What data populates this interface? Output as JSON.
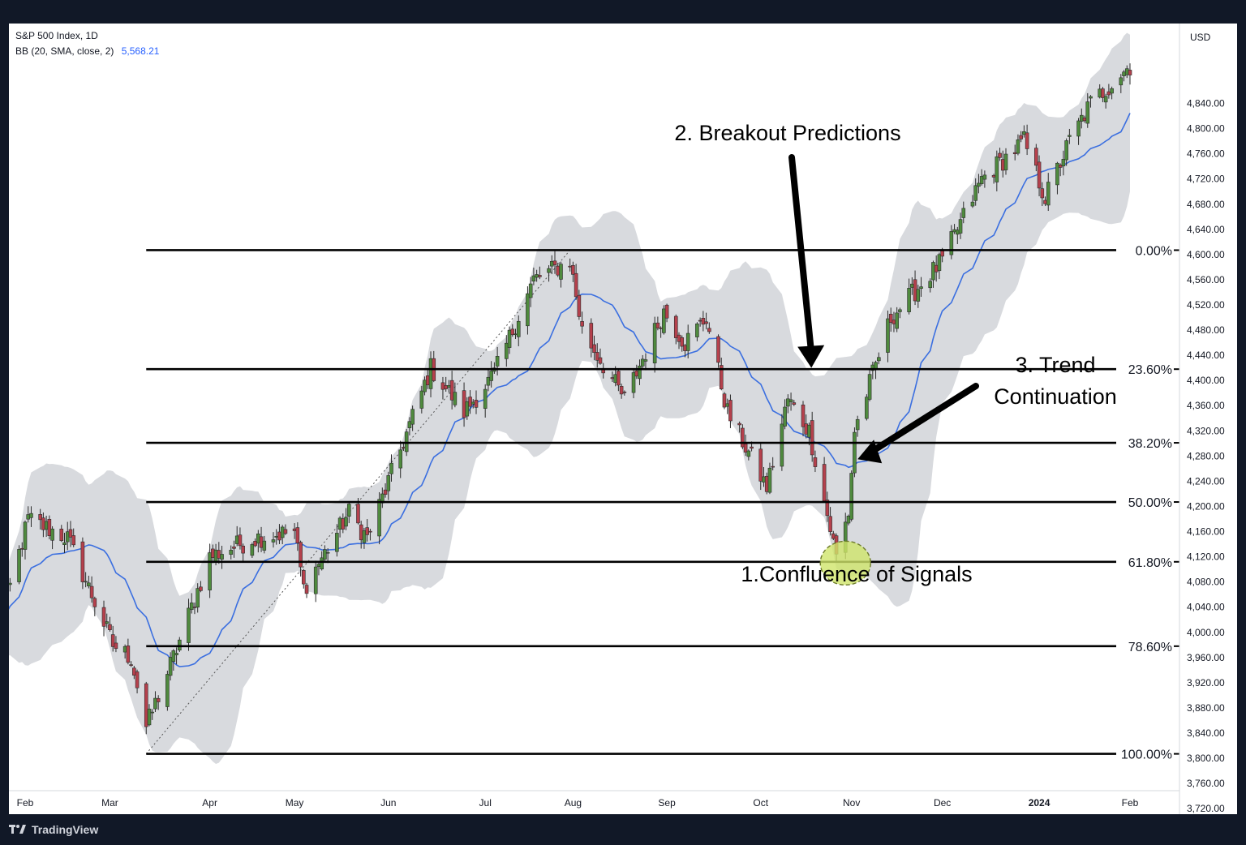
{
  "chart_data": {
    "type": "candlestick",
    "title": "S&P 500 Index, 1D",
    "indicator": {
      "label": "BB (20, SMA, close, 2)",
      "value": "5,568.21",
      "value_color": "#2962ff",
      "band_fill": "#d6d8dc",
      "basis_color": "#3b6fe0"
    },
    "currency": "USD",
    "y_range": [
      3700,
      4930
    ],
    "y_ticks": [
      3720,
      3760,
      3800,
      3840,
      3880,
      3920,
      3960,
      4000,
      4040,
      4080,
      4120,
      4160,
      4200,
      4240,
      4280,
      4320,
      4360,
      4400,
      4440,
      4480,
      4520,
      4560,
      4600,
      4640,
      4680,
      4720,
      4760,
      4800,
      4840
    ],
    "y_tick_labels": [
      "3,720.00",
      "3,760.00",
      "3,800.00",
      "3,840.00",
      "3,880.00",
      "3,920.00",
      "3,960.00",
      "4,000.00",
      "4,040.00",
      "4,080.00",
      "4,120.00",
      "4,160.00",
      "4,200.00",
      "4,240.00",
      "4,280.00",
      "4,320.00",
      "4,360.00",
      "4,400.00",
      "4,440.00",
      "4,480.00",
      "4,520.00",
      "4,560.00",
      "4,600.00",
      "4,640.00",
      "4,680.00",
      "4,720.00",
      "4,760.00",
      "4,800.00",
      "4,840.00"
    ],
    "x_labels": [
      {
        "label": "Feb",
        "date": "2023-02-01"
      },
      {
        "label": "Mar",
        "date": "2023-03-01"
      },
      {
        "label": "Apr",
        "date": "2023-04-03"
      },
      {
        "label": "May",
        "date": "2023-05-01"
      },
      {
        "label": "Jun",
        "date": "2023-06-01"
      },
      {
        "label": "Jul",
        "date": "2023-07-03"
      },
      {
        "label": "Aug",
        "date": "2023-08-01"
      },
      {
        "label": "Sep",
        "date": "2023-09-01"
      },
      {
        "label": "Oct",
        "date": "2023-10-02"
      },
      {
        "label": "Nov",
        "date": "2023-11-01"
      },
      {
        "label": "Dec",
        "date": "2023-12-01"
      },
      {
        "label": "2024",
        "date": "2024-01-02",
        "bold": true
      },
      {
        "label": "Feb",
        "date": "2024-02-01"
      }
    ],
    "up_color": "#4f8a3e",
    "down_color": "#b5404c",
    "fib_levels": [
      {
        "label": "0.00%",
        "price": 4607
      },
      {
        "label": "23.60%",
        "price": 4418
      },
      {
        "label": "38.20%",
        "price": 4301
      },
      {
        "label": "50.00%",
        "price": 4207
      },
      {
        "label": "61.80%",
        "price": 4112
      },
      {
        "label": "78.60%",
        "price": 3978
      },
      {
        "label": "100.00%",
        "price": 3807
      }
    ],
    "fib_start_date": "2023-03-13",
    "fib_anchor": {
      "from": {
        "date": "2023-03-13",
        "price": 3807
      },
      "to": {
        "date": "2023-07-31",
        "price": 4607
      }
    },
    "key_points": [
      {
        "date": "2023-01-23",
        "price": 4000
      },
      {
        "date": "2023-02-02",
        "price": 4180
      },
      {
        "date": "2023-02-15",
        "price": 4150
      },
      {
        "date": "2023-03-02",
        "price": 3980
      },
      {
        "date": "2023-03-08",
        "price": 3960
      },
      {
        "date": "2023-03-13",
        "price": 3850
      },
      {
        "date": "2023-03-22",
        "price": 3960
      },
      {
        "date": "2023-04-03",
        "price": 4120
      },
      {
        "date": "2023-04-18",
        "price": 4150
      },
      {
        "date": "2023-05-01",
        "price": 4160
      },
      {
        "date": "2023-05-04",
        "price": 4070
      },
      {
        "date": "2023-05-19",
        "price": 4190
      },
      {
        "date": "2023-05-25",
        "price": 4150
      },
      {
        "date": "2023-06-05",
        "price": 4290
      },
      {
        "date": "2023-06-15",
        "price": 4420
      },
      {
        "date": "2023-06-26",
        "price": 4350
      },
      {
        "date": "2023-07-06",
        "price": 4410
      },
      {
        "date": "2023-07-19",
        "price": 4560
      },
      {
        "date": "2023-07-31",
        "price": 4590
      },
      {
        "date": "2023-08-04",
        "price": 4480
      },
      {
        "date": "2023-08-18",
        "price": 4370
      },
      {
        "date": "2023-08-31",
        "price": 4510
      },
      {
        "date": "2023-09-07",
        "price": 4460
      },
      {
        "date": "2023-09-14",
        "price": 4500
      },
      {
        "date": "2023-09-21",
        "price": 4350
      },
      {
        "date": "2023-10-04",
        "price": 4230
      },
      {
        "date": "2023-10-11",
        "price": 4370
      },
      {
        "date": "2023-10-18",
        "price": 4320
      },
      {
        "date": "2023-10-27",
        "price": 4120
      },
      {
        "date": "2023-10-31",
        "price": 4190
      },
      {
        "date": "2023-11-02",
        "price": 4320
      },
      {
        "date": "2023-11-14",
        "price": 4500
      },
      {
        "date": "2023-12-01",
        "price": 4590
      },
      {
        "date": "2023-12-14",
        "price": 4720
      },
      {
        "date": "2023-12-28",
        "price": 4780
      },
      {
        "date": "2024-01-04",
        "price": 4690
      },
      {
        "date": "2024-01-12",
        "price": 4780
      },
      {
        "date": "2024-01-19",
        "price": 4840
      },
      {
        "date": "2024-02-01",
        "price": 4900
      }
    ],
    "annotations": [
      {
        "text": "2. Breakout Predictions",
        "arrow_to": {
          "date": "2023-10-19",
          "price": 4420
        }
      },
      {
        "text_lines": [
          "3. Trend",
          "Continuation"
        ],
        "arrow_to": {
          "date": "2023-11-03",
          "price": 4275
        }
      },
      {
        "text": "1.Confluence of Signals",
        "highlight": {
          "date": "2023-10-30",
          "price": 4110,
          "color": "#cfe56a"
        }
      }
    ]
  },
  "watermark": "TradingView"
}
